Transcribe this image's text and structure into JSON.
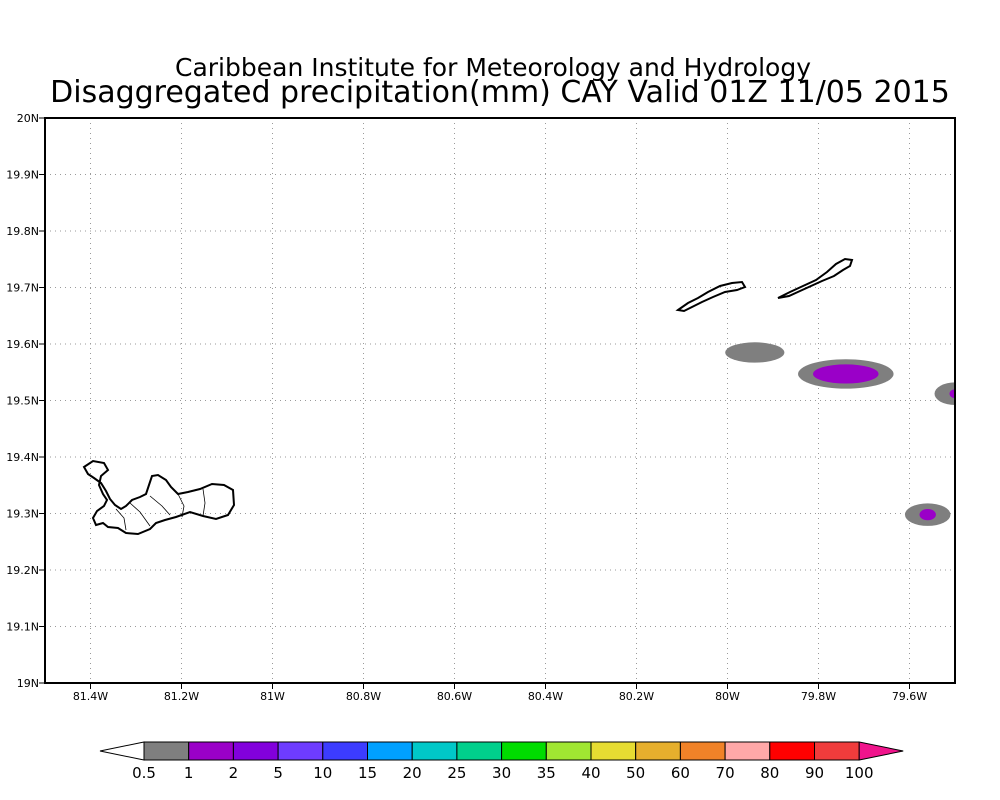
{
  "header": {
    "title": "Caribbean Institute for Meteorology and Hydrology",
    "subtitle": "Disaggregated precipitation(mm) CAY Valid 01Z 11/05 2015"
  },
  "map": {
    "lon_range": [
      -81.5,
      -79.5
    ],
    "lat_range": [
      19.0,
      20.0
    ],
    "grid": "dotted",
    "lat_ticks": [
      {
        "value": 20.0,
        "label": "20N"
      },
      {
        "value": 19.9,
        "label": "19.9N"
      },
      {
        "value": 19.8,
        "label": "19.8N"
      },
      {
        "value": 19.7,
        "label": "19.7N"
      },
      {
        "value": 19.6,
        "label": "19.6N"
      },
      {
        "value": 19.5,
        "label": "19.5N"
      },
      {
        "value": 19.4,
        "label": "19.4N"
      },
      {
        "value": 19.3,
        "label": "19.3N"
      },
      {
        "value": 19.2,
        "label": "19.2N"
      },
      {
        "value": 19.1,
        "label": "19.1N"
      },
      {
        "value": 19.0,
        "label": "19N"
      }
    ],
    "lon_ticks": [
      {
        "value": -81.4,
        "label": "81.4W"
      },
      {
        "value": -81.2,
        "label": "81.2W"
      },
      {
        "value": -81.0,
        "label": "81W"
      },
      {
        "value": -80.8,
        "label": "80.8W"
      },
      {
        "value": -80.6,
        "label": "80.6W"
      },
      {
        "value": -80.4,
        "label": "80.4W"
      },
      {
        "value": -80.2,
        "label": "80.2W"
      },
      {
        "value": -80.0,
        "label": "80W"
      },
      {
        "value": -79.8,
        "label": "79.8W"
      },
      {
        "value": -79.6,
        "label": "79.6W"
      }
    ],
    "precip_cells": [
      {
        "lon": -79.94,
        "lat": 19.585,
        "rlon": 0.065,
        "rlat": 0.018,
        "category": "0.5-1"
      },
      {
        "lon": -79.74,
        "lat": 19.547,
        "rlon": 0.105,
        "rlat": 0.026,
        "category": "0.5-1"
      },
      {
        "lon": -79.74,
        "lat": 19.547,
        "rlon": 0.072,
        "rlat": 0.017,
        "category": "1-2"
      },
      {
        "lon": -79.5,
        "lat": 19.512,
        "rlon": 0.045,
        "rlat": 0.02,
        "category": "0.5-1"
      },
      {
        "lon": -79.5,
        "lat": 19.512,
        "rlon": 0.012,
        "rlat": 0.008,
        "category": "1-2"
      },
      {
        "lon": -79.56,
        "lat": 19.298,
        "rlon": 0.05,
        "rlat": 0.02,
        "category": "0.5-1"
      },
      {
        "lon": -79.56,
        "lat": 19.298,
        "rlon": 0.018,
        "rlat": 0.01,
        "category": "1-2"
      }
    ]
  },
  "colorbar": {
    "labels": [
      "0.5",
      "1",
      "2",
      "5",
      "10",
      "15",
      "20",
      "25",
      "30",
      "35",
      "40",
      "50",
      "60",
      "70",
      "80",
      "90",
      "100"
    ],
    "colors": [
      "#ffffff",
      "#7f7f7f",
      "#9a00c8",
      "#8200dc",
      "#6e3cff",
      "#3c3cff",
      "#00a0ff",
      "#00c8c8",
      "#00d08c",
      "#00dc00",
      "#a0e632",
      "#e6dc32",
      "#e6af2d",
      "#f08228",
      "#ffa8a8",
      "#ff0000",
      "#f03c3c",
      "#f0148c"
    ]
  }
}
